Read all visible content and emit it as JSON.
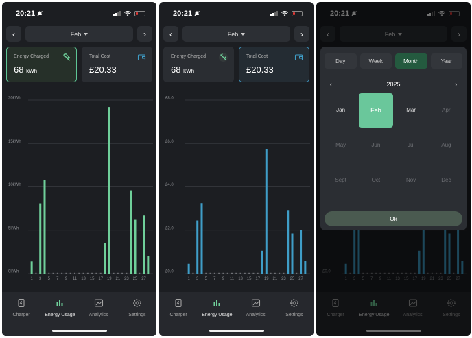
{
  "status": {
    "time": "20:21"
  },
  "nav": {
    "month": "Feb"
  },
  "cards": {
    "energy": {
      "label": "Energy Charged",
      "value": "68",
      "unit": "kWh"
    },
    "cost": {
      "label": "Total Cost",
      "value": "£20.33"
    }
  },
  "tabs": [
    {
      "label": "Charger",
      "icon": "charger-icon"
    },
    {
      "label": "Energy Usage",
      "icon": "bar-chart-icon"
    },
    {
      "label": "Analytics",
      "icon": "analytics-icon"
    },
    {
      "label": "Settings",
      "icon": "gear-icon"
    }
  ],
  "picker": {
    "tabs": [
      "Day",
      "Week",
      "Month",
      "Year"
    ],
    "active_tab": "Month",
    "year": "2025",
    "months": [
      "Jan",
      "Feb",
      "Mar",
      "Apr",
      "May",
      "Jun",
      "Jul",
      "Aug",
      "Sept",
      "Oct",
      "Nov",
      "Dec"
    ],
    "selected": "Feb",
    "ok": "Ok"
  },
  "colors": {
    "energy": "#6fcf9a",
    "cost": "#3f9ec8",
    "accent": "#245a3f"
  },
  "chart_data": [
    {
      "type": "bar",
      "x": [
        1,
        2,
        3,
        4,
        5,
        6,
        7,
        8,
        9,
        10,
        11,
        12,
        13,
        14,
        15,
        16,
        17,
        18,
        19,
        20,
        21,
        22,
        23,
        24,
        25,
        26,
        27,
        28
      ],
      "xticks": [
        "1",
        "3",
        "5",
        "7",
        "9",
        "11",
        "13",
        "15",
        "17",
        "19",
        "21",
        "23",
        "25",
        "27"
      ],
      "yticks": [
        "0kWh",
        "5kWh",
        "10kWh",
        "15kWh",
        "20kWh"
      ],
      "ylim": [
        0,
        20
      ],
      "values": [
        1.4,
        0,
        8.1,
        10.8,
        0,
        0,
        0,
        0,
        0,
        0,
        0,
        0,
        0,
        0,
        0,
        0,
        0,
        3.5,
        19.2,
        0,
        0,
        0,
        0,
        9.6,
        6.2,
        0,
        6.7,
        2.0
      ],
      "color": "#6fcf9a"
    },
    {
      "type": "bar",
      "x": [
        1,
        2,
        3,
        4,
        5,
        6,
        7,
        8,
        9,
        10,
        11,
        12,
        13,
        14,
        15,
        16,
        17,
        18,
        19,
        20,
        21,
        22,
        23,
        24,
        25,
        26,
        27,
        28
      ],
      "xticks": [
        "1",
        "3",
        "5",
        "7",
        "9",
        "11",
        "13",
        "15",
        "17",
        "19",
        "21",
        "23",
        "25",
        "27"
      ],
      "yticks": [
        "£0.0",
        "£2.0",
        "£4.0",
        "£6.0",
        "£8.0"
      ],
      "ylim": [
        0,
        8
      ],
      "values": [
        0.45,
        0,
        2.45,
        3.25,
        0,
        0,
        0,
        0,
        0,
        0,
        0,
        0,
        0,
        0,
        0,
        0,
        0,
        1.05,
        5.75,
        0,
        0,
        0,
        0,
        2.9,
        1.85,
        0,
        2.0,
        0.6
      ],
      "color": "#3f9ec8"
    }
  ]
}
